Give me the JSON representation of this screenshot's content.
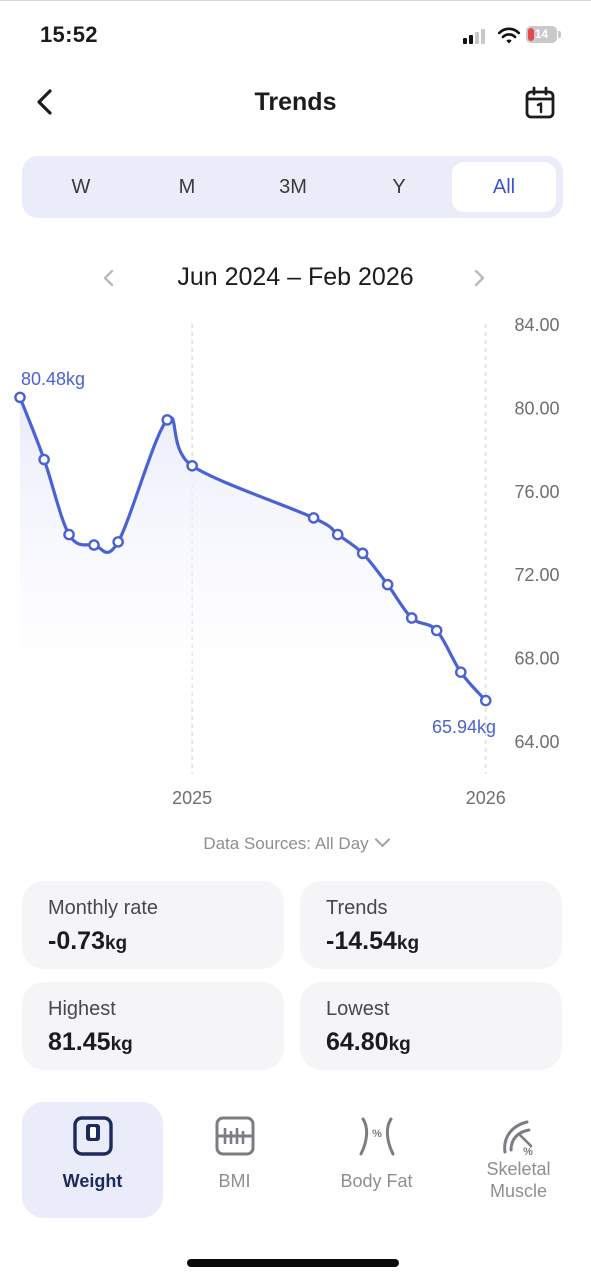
{
  "status_bar": {
    "time": "15:52",
    "battery": "14"
  },
  "header": {
    "title": "Trends"
  },
  "periods": [
    {
      "label": "W",
      "active": false
    },
    {
      "label": "M",
      "active": false
    },
    {
      "label": "3M",
      "active": false
    },
    {
      "label": "Y",
      "active": false
    },
    {
      "label": "All",
      "active": true
    }
  ],
  "range": {
    "label": "Jun 2024 – Feb 2026"
  },
  "chart_data": {
    "type": "line",
    "unit": "kg",
    "x": [
      "2024-06",
      "2024-07",
      "2024-08",
      "2024-09",
      "2024-10",
      "2024-12",
      "2025-01",
      "2025-06",
      "2025-07",
      "2025-08",
      "2025-09",
      "2025-10",
      "2025-11",
      "2025-12",
      "2026-01"
    ],
    "y": [
      80.48,
      77.5,
      73.9,
      73.4,
      73.55,
      79.4,
      77.2,
      74.7,
      73.9,
      73.0,
      71.5,
      69.9,
      69.3,
      67.3,
      65.94
    ],
    "ylim": [
      64,
      84
    ],
    "yticks": [
      "84.00",
      "80.00",
      "76.00",
      "72.00",
      "68.00",
      "64.00"
    ],
    "xticks": [
      "2025",
      "2026"
    ],
    "annotations": {
      "first": "80.48kg",
      "last": "65.94kg"
    },
    "line_color": "#4a62d4"
  },
  "data_sources": {
    "label": "Data Sources: All Day"
  },
  "stats": {
    "monthly_rate": {
      "label": "Monthly rate",
      "value": "-0.73",
      "unit": "kg"
    },
    "trends": {
      "label": "Trends",
      "value": "-14.54",
      "unit": "kg"
    },
    "highest": {
      "label": "Highest",
      "value": "81.45",
      "unit": "kg"
    },
    "lowest": {
      "label": "Lowest",
      "value": "64.80",
      "unit": "kg"
    }
  },
  "metrics": [
    {
      "label": "Weight",
      "icon": "weight-scale-icon",
      "active": true
    },
    {
      "label": "BMI",
      "icon": "bmi-icon",
      "active": false
    },
    {
      "label": "Body Fat",
      "icon": "body-fat-icon",
      "active": false
    },
    {
      "label": "Skeletal Muscle",
      "icon": "skeletal-muscle-icon",
      "active": false
    }
  ],
  "colors": {
    "accent": "#3a55d8",
    "chart_line": "#4a62d4",
    "segment_bg": "#eaedf9",
    "card_bg": "#f5f5f7"
  }
}
